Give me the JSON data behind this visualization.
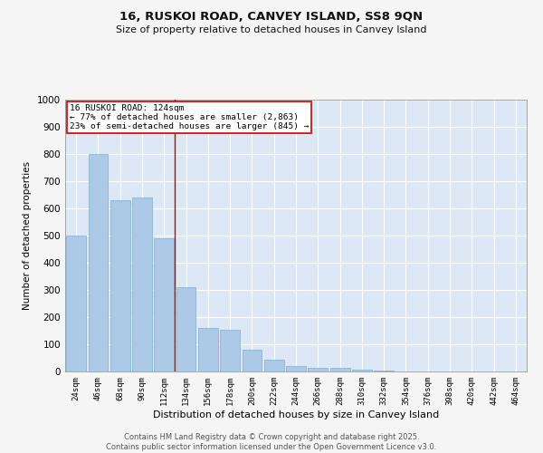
{
  "title1": "16, RUSKOI ROAD, CANVEY ISLAND, SS8 9QN",
  "title2": "Size of property relative to detached houses in Canvey Island",
  "xlabel": "Distribution of detached houses by size in Canvey Island",
  "ylabel": "Number of detached properties",
  "categories": [
    "24sqm",
    "46sqm",
    "68sqm",
    "90sqm",
    "112sqm",
    "134sqm",
    "156sqm",
    "178sqm",
    "200sqm",
    "222sqm",
    "244sqm",
    "266sqm",
    "288sqm",
    "310sqm",
    "332sqm",
    "354sqm",
    "376sqm",
    "398sqm",
    "420sqm",
    "442sqm",
    "464sqm"
  ],
  "values": [
    500,
    800,
    630,
    640,
    490,
    310,
    160,
    155,
    80,
    44,
    20,
    15,
    15,
    8,
    2,
    1,
    1,
    0,
    0,
    0,
    0
  ],
  "bar_color": "#adc9e8",
  "bar_edge_color": "#7aafd4",
  "highlight_label": "16 RUSKOI ROAD: 124sqm",
  "annotation_line1": "← 77% of detached houses are smaller (2,863)",
  "annotation_line2": "23% of semi-detached houses are larger (845) →",
  "annotation_box_color": "#ffffff",
  "annotation_box_edge": "#cc0000",
  "vline_color": "#cc0000",
  "vline_x_index": 4.5,
  "ylim": [
    0,
    1000
  ],
  "yticks": [
    0,
    100,
    200,
    300,
    400,
    500,
    600,
    700,
    800,
    900,
    1000
  ],
  "background_color": "#dce8f5",
  "grid_color": "#ffffff",
  "fig_bg_color": "#f5f5f5",
  "footer1": "Contains HM Land Registry data © Crown copyright and database right 2025.",
  "footer2": "Contains public sector information licensed under the Open Government Licence v3.0."
}
